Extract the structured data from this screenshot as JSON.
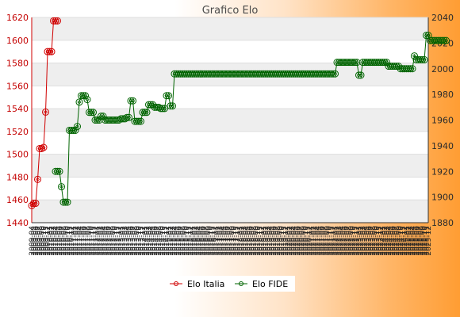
{
  "chart_data": {
    "type": "line",
    "title": "Grafico Elo",
    "y_left": {
      "min": 1440,
      "max": 1620,
      "ticks": [
        1440,
        1460,
        1480,
        1500,
        1520,
        1540,
        1560,
        1580,
        1600,
        1620
      ],
      "color": "#d00000"
    },
    "y_right": {
      "min": 1880,
      "max": 2040,
      "ticks": [
        1880,
        1900,
        1920,
        1940,
        1960,
        1980,
        2000,
        2020,
        2040
      ]
    },
    "grid": true,
    "grid_bands": [
      "#ffffff",
      "#eeeeee"
    ],
    "series": [
      {
        "name": "Elo Italia",
        "axis": "left",
        "color": "#d00000",
        "x": [
          0,
          1,
          2,
          3,
          4,
          5,
          6,
          7,
          8,
          9,
          10,
          11,
          12,
          13
        ],
        "values": [
          1455,
          1457,
          1457,
          1478,
          1505,
          1505,
          1506,
          1537,
          1590,
          1590,
          1590,
          1617,
          1617,
          1617
        ]
      },
      {
        "name": "Elo FIDE",
        "axis": "right",
        "color": "#006400",
        "x_start": 12,
        "values": [
          1920,
          1920,
          1920,
          1908,
          1896,
          1896,
          1896,
          1952,
          1952,
          1952,
          1952,
          1955,
          1974,
          1979,
          1979,
          1979,
          1976,
          1966,
          1966,
          1966,
          1960,
          1960,
          1960,
          1963,
          1963,
          1960,
          1960,
          1960,
          1960,
          1960,
          1960,
          1960,
          1960,
          1961,
          1961,
          1961,
          1962,
          1962,
          1975,
          1975,
          1959,
          1959,
          1959,
          1959,
          1966,
          1966,
          1966,
          1972,
          1972,
          1972,
          1970,
          1970,
          1970,
          1969,
          1969,
          1969,
          1979,
          1979,
          1971,
          1971,
          1996,
          1996,
          1996,
          1996,
          1996,
          1996,
          1996,
          1996,
          1996,
          1996,
          1996,
          1996,
          1996,
          1996,
          1996,
          1996,
          1996,
          1996,
          1996,
          1996,
          1996,
          1996,
          1996,
          1996,
          1996,
          1996,
          1996,
          1996,
          1996,
          1996,
          1996,
          1996,
          1996,
          1996,
          1996,
          1996,
          1996,
          1996,
          1996,
          1996,
          1996,
          1996,
          1996,
          1996,
          1996,
          1996,
          1996,
          1996,
          1996,
          1996,
          1996,
          1996,
          1996,
          1996,
          1996,
          1996,
          1996,
          1996,
          1996,
          1996,
          1996,
          1996,
          1996,
          1996,
          1996,
          1996,
          1996,
          1996,
          1996,
          1996,
          1996,
          1996,
          1996,
          1996,
          1996,
          1996,
          1996,
          1996,
          1996,
          1996,
          1996,
          1996,
          2005,
          2005,
          2005,
          2005,
          2005,
          2005,
          2005,
          2005,
          2005,
          2005,
          2005,
          1995,
          1995,
          2005,
          2005,
          2005,
          2005,
          2005,
          2005,
          2005,
          2005,
          2005,
          2005,
          2005,
          2005,
          2005,
          2002,
          2002,
          2002,
          2002,
          2002,
          2002,
          2000,
          2000,
          2000,
          2000,
          2000,
          2000,
          2000,
          2010,
          2007,
          2007,
          2007,
          2007,
          2007,
          2026,
          2026,
          2022,
          2022,
          2022,
          2022,
          2022,
          2022,
          2022,
          2022,
          2022
        ]
      }
    ],
    "x_labels": [
      "2009-04",
      "2009-05",
      "2009-06",
      "2009-07",
      "2009-08",
      "2009-09",
      "2009-10",
      "2009-11",
      "2009-12",
      "2010-01",
      "2010-02",
      "2010-03",
      "2010-04",
      "2010-05",
      "2010-06",
      "2010-07",
      "2010-08",
      "2010-09",
      "2010-10",
      "2010-11",
      "2010-12",
      "2011-01",
      "2011-02",
      "2011-03",
      "2011-04",
      "2011-05",
      "2011-06",
      "2011-07",
      "2011-08",
      "2011-09",
      "2011-10",
      "2011-11",
      "2011-12",
      "2012-01",
      "2012-02",
      "2012-03",
      "2012-04",
      "2012-05",
      "2012-06",
      "2012-07",
      "2012-08",
      "2012-09",
      "2012-10",
      "2012-11",
      "2012-12",
      "2013-01",
      "2013-02",
      "2013-03",
      "2013-04",
      "2013-05",
      "2013-06",
      "2013-07",
      "2013-08",
      "2013-09",
      "2013-10",
      "2013-11",
      "2013-12",
      "2014-01",
      "2014-02",
      "2014-03",
      "2014-04",
      "2014-05",
      "2014-06",
      "2014-07",
      "2014-08",
      "2014-09",
      "2014-10",
      "2014-11",
      "2014-12",
      "2015-01",
      "2015-02",
      "2015-03",
      "2015-04",
      "2015-05",
      "2015-06",
      "2015-07",
      "2015-08",
      "2015-09",
      "2015-10",
      "2015-11",
      "2015-12",
      "2016-01",
      "2016-02",
      "2016-03",
      "2016-04",
      "2016-05",
      "2016-06",
      "2016-07",
      "2016-08",
      "2016-09",
      "2016-10",
      "2016-11",
      "2016-12",
      "2017-01",
      "2017-02",
      "2017-03",
      "2017-04",
      "2017-05",
      "2017-06",
      "2017-07",
      "2017-08",
      "2017-09",
      "2017-10",
      "2017-11",
      "2017-12",
      "2018-01",
      "2018-02",
      "2018-03",
      "2018-04",
      "2018-05",
      "2018-06",
      "2018-07",
      "2018-08",
      "2018-09",
      "2018-10",
      "2018-11",
      "2018-12",
      "2019-01",
      "2019-02",
      "2019-03",
      "2019-04",
      "2019-05",
      "2019-06",
      "2019-07",
      "2019-08",
      "2019-09",
      "2019-10",
      "2019-11",
      "2019-12",
      "2020-01",
      "2020-02",
      "2020-03",
      "2020-04",
      "2020-05",
      "2020-06",
      "2020-07",
      "2020-08",
      "2020-09",
      "2020-10",
      "2020-11",
      "2020-12",
      "2021-01",
      "2021-02",
      "2021-03",
      "2021-04",
      "2021-05",
      "2021-06",
      "2021-07",
      "2021-08",
      "2021-09",
      "2021-10",
      "2021-11",
      "2021-12",
      "2022-01",
      "2022-02",
      "2022-03",
      "2022-04",
      "2022-05",
      "2022-06",
      "2022-07",
      "2022-08",
      "2022-09",
      "2022-10",
      "2022-11",
      "2022-12",
      "2023-01",
      "2023-02",
      "2023-03",
      "2023-04",
      "2023-05",
      "2023-06",
      "2023-07",
      "2023-08",
      "2023-09",
      "2023-10",
      "2023-11",
      "2023-12",
      "2024-01",
      "2024-02",
      "2024-03",
      "2024-04",
      "2024-05",
      "2024-06",
      "2024-07",
      "2024-08",
      "2024-09",
      "2024-10",
      "2024-11",
      "2024-12",
      "2025-01",
      "2025-02",
      "2025-03",
      "2025-04",
      "2025-05",
      "2025-06",
      "2025-07",
      "2025-08",
      "2025-09",
      "2025-10",
      "2025-11",
      "2025-12"
    ],
    "legend": {
      "placement": "bottom-center",
      "items": [
        "Elo Italia",
        "Elo FIDE"
      ]
    }
  }
}
